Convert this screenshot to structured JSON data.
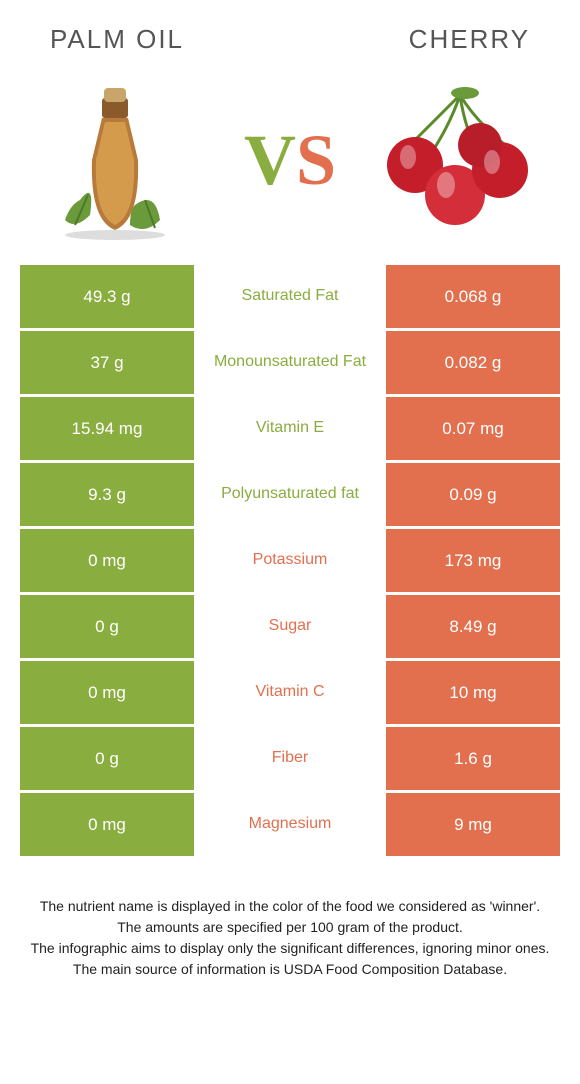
{
  "header": {
    "left_title": "Palm oil",
    "right_title": "Cherry",
    "vs_v": "V",
    "vs_s": "S"
  },
  "colors": {
    "left_bg": "#8aad3f",
    "right_bg": "#e2704f",
    "mid_green": "#8aad3f",
    "mid_orange": "#e2704f",
    "page_bg": "#ffffff"
  },
  "rows": [
    {
      "left": "49.3 g",
      "label": "Saturated Fat",
      "winner": "green",
      "right": "0.068 g"
    },
    {
      "left": "37 g",
      "label": "Monounsaturated Fat",
      "winner": "green",
      "right": "0.082 g"
    },
    {
      "left": "15.94 mg",
      "label": "Vitamin E",
      "winner": "green",
      "right": "0.07 mg"
    },
    {
      "left": "9.3 g",
      "label": "Polyunsaturated fat",
      "winner": "green",
      "right": "0.09 g"
    },
    {
      "left": "0 mg",
      "label": "Potassium",
      "winner": "orange",
      "right": "173 mg"
    },
    {
      "left": "0 g",
      "label": "Sugar",
      "winner": "orange",
      "right": "8.49 g"
    },
    {
      "left": "0 mg",
      "label": "Vitamin C",
      "winner": "orange",
      "right": "10 mg"
    },
    {
      "left": "0 g",
      "label": "Fiber",
      "winner": "orange",
      "right": "1.6 g"
    },
    {
      "left": "0 mg",
      "label": "Magnesium",
      "winner": "orange",
      "right": "9 mg"
    }
  ],
  "footnotes": [
    "The nutrient name is displayed in the color of the food we considered as 'winner'.",
    "The amounts are specified per 100 gram of the product.",
    "The infographic aims to display only the significant differences, ignoring minor ones.",
    "The main source of information is USDA Food Composition Database."
  ]
}
